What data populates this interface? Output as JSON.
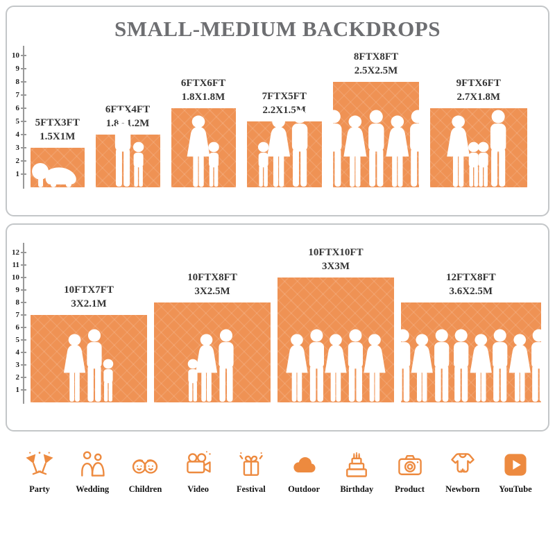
{
  "title": "SMALL-MEDIUM BACKDROPS",
  "colors": {
    "bar": "#EF9254",
    "icon": "#ED8A3F",
    "title": "#6D6E71",
    "label": "#343434"
  },
  "panels": [
    {
      "ruler_max": 10,
      "backdrops": [
        {
          "ft": "5FTX3FT",
          "m": "1.5X1M",
          "width_ft": 5,
          "height_ft": 3,
          "figures": [
            "baby"
          ]
        },
        {
          "ft": "6FTX4FT",
          "m": "1.8X1.2M",
          "width_ft": 6,
          "height_ft": 4,
          "figures": [
            "man",
            "child"
          ]
        },
        {
          "ft": "6FTX6FT",
          "m": "1.8X1.8M",
          "width_ft": 6,
          "height_ft": 6,
          "figures": [
            "woman",
            "child"
          ]
        },
        {
          "ft": "7FTX5FT",
          "m": "2.2X1.5M",
          "width_ft": 7,
          "height_ft": 5,
          "figures": [
            "child",
            "woman",
            "man"
          ]
        },
        {
          "ft": "8FTX8FT",
          "m": "2.5X2.5M",
          "width_ft": 8,
          "height_ft": 8,
          "figures": [
            "man",
            "woman",
            "man",
            "woman",
            "man"
          ]
        },
        {
          "ft": "9FTX6FT",
          "m": "2.7X1.8M",
          "width_ft": 9,
          "height_ft": 6,
          "figures": [
            "woman",
            "child",
            "child",
            "man"
          ]
        }
      ]
    },
    {
      "ruler_max": 12,
      "backdrops": [
        {
          "ft": "10FTX7FT",
          "m": "3X2.1M",
          "width_ft": 10,
          "height_ft": 7,
          "figures": [
            "woman",
            "man",
            "child"
          ]
        },
        {
          "ft": "10FTX8FT",
          "m": "3X2.5M",
          "width_ft": 10,
          "height_ft": 8,
          "figures": [
            "child",
            "woman",
            "man"
          ]
        },
        {
          "ft": "10FTX10FT",
          "m": "3X3M",
          "width_ft": 10,
          "height_ft": 10,
          "figures": [
            "woman",
            "man",
            "woman",
            "man",
            "woman"
          ]
        },
        {
          "ft": "12FTX8FT",
          "m": "3.6X2.5M",
          "width_ft": 12,
          "height_ft": 8,
          "figures": [
            "man",
            "woman",
            "man",
            "man",
            "woman",
            "man",
            "woman",
            "man"
          ]
        }
      ]
    }
  ],
  "footer": {
    "items": [
      {
        "label": "Party",
        "icon": "party-icon",
        "icon_ref": "#icon-party"
      },
      {
        "label": "Wedding",
        "icon": "wedding-icon",
        "icon_ref": "#icon-wedding"
      },
      {
        "label": "Children",
        "icon": "children-icon",
        "icon_ref": "#icon-children"
      },
      {
        "label": "Video",
        "icon": "video-icon",
        "icon_ref": "#icon-video"
      },
      {
        "label": "Festival",
        "icon": "festival-icon",
        "icon_ref": "#icon-festival"
      },
      {
        "label": "Outdoor",
        "icon": "outdoor-icon",
        "icon_ref": "#icon-outdoor"
      },
      {
        "label": "Birthday",
        "icon": "birthday-icon",
        "icon_ref": "#icon-birthday"
      },
      {
        "label": "Product",
        "icon": "product-icon",
        "icon_ref": "#icon-product"
      },
      {
        "label": "Newborn",
        "icon": "newborn-icon",
        "icon_ref": "#icon-newborn"
      },
      {
        "label": "YouTube",
        "icon": "youtube-icon",
        "icon_ref": "#icon-youtube"
      }
    ]
  },
  "chart_data": [
    {
      "type": "bar",
      "title": "SMALL-MEDIUM BACKDROPS",
      "categories": [
        "5FTX3FT",
        "6FTX4FT",
        "6FTX6FT",
        "7FTX5FT",
        "8FTX8FT",
        "9FTX6FT"
      ],
      "values": [
        3,
        4,
        6,
        5,
        8,
        6
      ],
      "bar_widths_ft": [
        5,
        6,
        6,
        7,
        8,
        9
      ],
      "metric_labels": [
        "1.5X1M",
        "1.8X1.2M",
        "1.8X1.8M",
        "2.2X1.5M",
        "2.5X2.5M",
        "2.7X1.8M"
      ],
      "xlabel": "",
      "ylabel": "",
      "ylim": [
        0,
        10
      ],
      "grid": false,
      "legend": false
    },
    {
      "type": "bar",
      "title": "",
      "categories": [
        "10FTX7FT",
        "10FTX8FT",
        "10FTX10FT",
        "12FTX8FT"
      ],
      "values": [
        7,
        8,
        10,
        8
      ],
      "bar_widths_ft": [
        10,
        10,
        10,
        12
      ],
      "metric_labels": [
        "3X2.1M",
        "3X2.5M",
        "3X3M",
        "3.6X2.5M"
      ],
      "xlabel": "",
      "ylabel": "",
      "ylim": [
        0,
        12
      ],
      "grid": false,
      "legend": false
    }
  ]
}
